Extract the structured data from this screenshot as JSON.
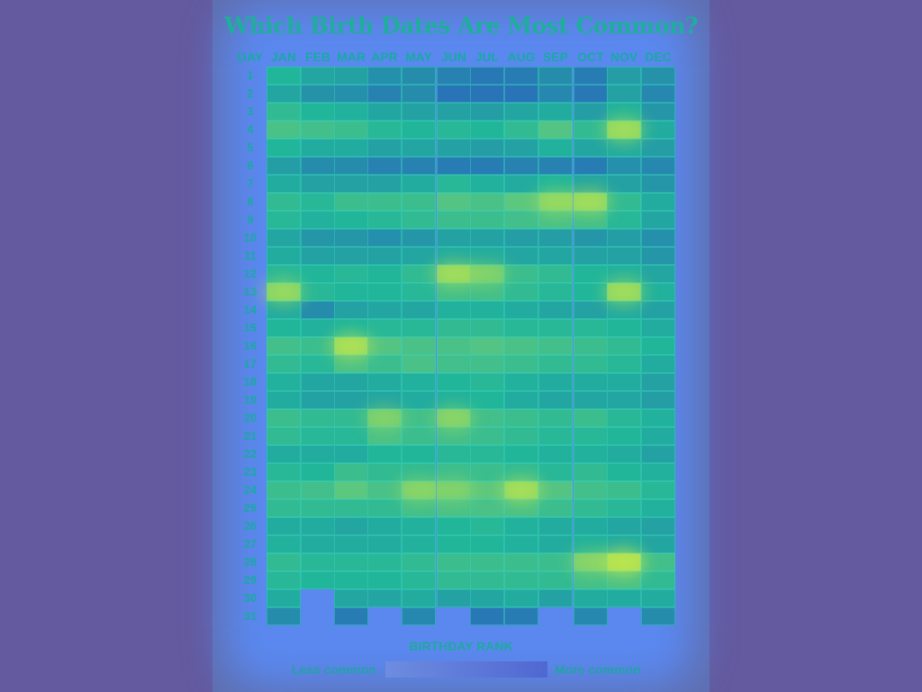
{
  "chart_data": {
    "type": "heatmap",
    "title": "Which Birth Dates Are Most Common?",
    "row_header": "DAY",
    "months": [
      "JAN",
      "FEB",
      "MAR",
      "APR",
      "MAY",
      "JUN",
      "JUL",
      "AUG",
      "SEP",
      "OCT",
      "NOV",
      "DEC"
    ],
    "days": [
      "1",
      "2",
      "3",
      "4",
      "5",
      "6",
      "7",
      "8",
      "9",
      "10",
      "11",
      "12",
      "13",
      "14",
      "15",
      "16",
      "17",
      "18",
      "19",
      "20",
      "21",
      "22",
      "23",
      "24",
      "25",
      "26",
      "27",
      "28",
      "29",
      "30",
      "31"
    ],
    "month_lengths": [
      31,
      29,
      31,
      30,
      31,
      30,
      31,
      31,
      30,
      31,
      30,
      31
    ],
    "intensity": [
      [
        0.5,
        0.42,
        0.4,
        0.32,
        0.3,
        0.25,
        0.2,
        0.22,
        0.3,
        0.22,
        0.38,
        0.33
      ],
      [
        0.42,
        0.33,
        0.32,
        0.25,
        0.3,
        0.18,
        0.18,
        0.18,
        0.28,
        0.2,
        0.4,
        0.28
      ],
      [
        0.55,
        0.5,
        0.48,
        0.42,
        0.4,
        0.4,
        0.38,
        0.42,
        0.45,
        0.38,
        0.48,
        0.35
      ],
      [
        0.62,
        0.6,
        0.58,
        0.52,
        0.5,
        0.52,
        0.5,
        0.55,
        0.65,
        0.55,
        0.78,
        0.45
      ],
      [
        0.5,
        0.45,
        0.45,
        0.4,
        0.42,
        0.4,
        0.38,
        0.4,
        0.48,
        0.42,
        0.45,
        0.38
      ],
      [
        0.38,
        0.3,
        0.3,
        0.25,
        0.25,
        0.22,
        0.22,
        0.25,
        0.25,
        0.22,
        0.32,
        0.28
      ],
      [
        0.45,
        0.4,
        0.4,
        0.4,
        0.45,
        0.52,
        0.48,
        0.45,
        0.5,
        0.42,
        0.4,
        0.35
      ],
      [
        0.55,
        0.52,
        0.58,
        0.58,
        0.58,
        0.65,
        0.62,
        0.68,
        0.75,
        0.78,
        0.55,
        0.45
      ],
      [
        0.52,
        0.48,
        0.5,
        0.52,
        0.55,
        0.58,
        0.58,
        0.6,
        0.62,
        0.6,
        0.52,
        0.42
      ],
      [
        0.42,
        0.35,
        0.35,
        0.32,
        0.35,
        0.4,
        0.4,
        0.38,
        0.38,
        0.35,
        0.38,
        0.32
      ],
      [
        0.45,
        0.4,
        0.4,
        0.4,
        0.42,
        0.45,
        0.45,
        0.42,
        0.42,
        0.4,
        0.4,
        0.35
      ],
      [
        0.52,
        0.5,
        0.52,
        0.5,
        0.55,
        0.78,
        0.7,
        0.58,
        0.55,
        0.5,
        0.48,
        0.42
      ],
      [
        0.75,
        0.52,
        0.5,
        0.5,
        0.52,
        0.6,
        0.6,
        0.55,
        0.52,
        0.5,
        0.78,
        0.48
      ],
      [
        0.45,
        0.3,
        0.4,
        0.42,
        0.42,
        0.48,
        0.48,
        0.45,
        0.42,
        0.4,
        0.45,
        0.4
      ],
      [
        0.5,
        0.48,
        0.5,
        0.52,
        0.52,
        0.55,
        0.55,
        0.52,
        0.52,
        0.52,
        0.5,
        0.45
      ],
      [
        0.6,
        0.58,
        0.82,
        0.65,
        0.62,
        0.62,
        0.65,
        0.62,
        0.6,
        0.58,
        0.55,
        0.5
      ],
      [
        0.55,
        0.52,
        0.62,
        0.58,
        0.62,
        0.6,
        0.6,
        0.58,
        0.55,
        0.55,
        0.52,
        0.45
      ],
      [
        0.48,
        0.42,
        0.42,
        0.45,
        0.48,
        0.5,
        0.52,
        0.48,
        0.45,
        0.45,
        0.45,
        0.4
      ],
      [
        0.45,
        0.4,
        0.4,
        0.42,
        0.45,
        0.48,
        0.5,
        0.45,
        0.42,
        0.42,
        0.42,
        0.38
      ],
      [
        0.58,
        0.55,
        0.55,
        0.7,
        0.6,
        0.72,
        0.6,
        0.58,
        0.55,
        0.58,
        0.52,
        0.48
      ],
      [
        0.55,
        0.52,
        0.52,
        0.62,
        0.58,
        0.6,
        0.58,
        0.55,
        0.52,
        0.52,
        0.5,
        0.45
      ],
      [
        0.45,
        0.45,
        0.45,
        0.5,
        0.5,
        0.52,
        0.52,
        0.5,
        0.48,
        0.48,
        0.45,
        0.4
      ],
      [
        0.52,
        0.5,
        0.58,
        0.55,
        0.55,
        0.58,
        0.58,
        0.55,
        0.52,
        0.55,
        0.5,
        0.48
      ],
      [
        0.58,
        0.6,
        0.68,
        0.62,
        0.72,
        0.7,
        0.68,
        0.8,
        0.65,
        0.6,
        0.58,
        0.52
      ],
      [
        0.55,
        0.55,
        0.55,
        0.55,
        0.6,
        0.62,
        0.62,
        0.62,
        0.58,
        0.55,
        0.52,
        0.48
      ],
      [
        0.45,
        0.45,
        0.42,
        0.45,
        0.48,
        0.5,
        0.52,
        0.48,
        0.45,
        0.45,
        0.42,
        0.4
      ],
      [
        0.48,
        0.45,
        0.45,
        0.45,
        0.48,
        0.5,
        0.5,
        0.48,
        0.45,
        0.48,
        0.45,
        0.42
      ],
      [
        0.55,
        0.52,
        0.52,
        0.52,
        0.55,
        0.58,
        0.58,
        0.58,
        0.58,
        0.72,
        0.88,
        0.6
      ],
      [
        0.52,
        0.5,
        0.5,
        0.5,
        0.52,
        0.55,
        0.55,
        0.55,
        0.55,
        0.6,
        0.62,
        0.55
      ],
      [
        0.45,
        null,
        0.42,
        0.42,
        0.45,
        0.4,
        0.42,
        0.45,
        0.4,
        0.45,
        0.45,
        0.45
      ],
      [
        0.3,
        null,
        0.22,
        null,
        0.28,
        null,
        0.2,
        0.22,
        null,
        0.28,
        null,
        0.3
      ]
    ],
    "legend": {
      "title": "BIRTHDAY RANK",
      "low_label": "Less common",
      "high_label": "More common",
      "colors": {
        "low": "#2c4fc8",
        "mid": "#21b59a",
        "high": "#c6e84c"
      }
    }
  }
}
